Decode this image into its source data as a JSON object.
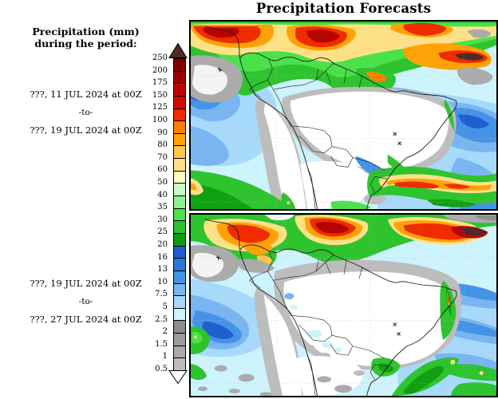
{
  "title": "Precipitation Forecasts",
  "sidebar": {
    "heading_line1": "Precipitation (mm)",
    "heading_line2": "during the period:",
    "periods": [
      {
        "start": "???, 11 JUL 2024 at 00Z",
        "separator": "-to-",
        "end": "???, 19 JUL 2024 at 00Z"
      },
      {
        "start": "???, 19 JUL 2024 at 00Z",
        "separator": "-to-",
        "end": "???, 27 JUL 2024 at 00Z"
      }
    ]
  },
  "colorbar": {
    "units": "mm",
    "ticks_top_to_bottom": [
      "250",
      "200",
      "175",
      "150",
      "125",
      "100",
      "90",
      "80",
      "70",
      "60",
      "50",
      "40",
      "35",
      "30",
      "25",
      "20",
      "16",
      "13",
      "10",
      "7.5",
      "5",
      "2.5",
      "2",
      "1.5",
      "1",
      "0.5"
    ],
    "segment_colors_top_to_bottom": [
      "#7f0000",
      "#9b0000",
      "#b80400",
      "#d40900",
      "#ee2c00",
      "#fd7e00",
      "#ffa207",
      "#fec44e",
      "#fee187",
      "#feffbe",
      "#c9fbc9",
      "#8ef08e",
      "#4be14b",
      "#2fc32f",
      "#109c10",
      "#1f5fce",
      "#2b78dd",
      "#4593e7",
      "#79b5f1",
      "#a6d9fa",
      "#cdf3fd",
      "#8d8d8d",
      "#9c9c9c",
      "#ababab",
      "#bdbdbd"
    ],
    "overflow_arrow_color": "#4f2a26",
    "underflow_arrow_color": "#ffffff"
  },
  "panels": [
    {
      "name": "forecast-days-1-8"
    },
    {
      "name": "forecast-days-9-16"
    }
  ]
}
